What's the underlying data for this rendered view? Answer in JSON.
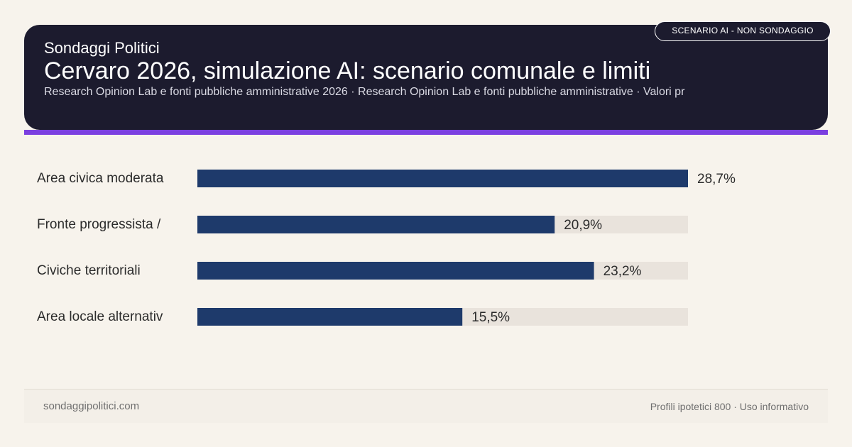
{
  "header": {
    "brand": "Sondaggi Politici",
    "title": "Cervaro 2026, simulazione AI: scenario comunale e limiti",
    "subtitle": "Research Opinion Lab e fonti pubbliche amministrative 2026 · Research Opinion Lab e fonti pubbliche amministrative · Valori pr",
    "badge": "SCENARIO AI - NON SONDAGGIO"
  },
  "colors": {
    "header_bg": "#1c1b2e",
    "accent": "#7b3fe0",
    "bar": "#1e3a6b",
    "track": "#e9e3dc",
    "page_bg": "#f7f3ec"
  },
  "chart_data": {
    "type": "bar",
    "orientation": "horizontal",
    "categories": [
      "Area civica moderata",
      "Fronte progressista /",
      "Civiche territoriali",
      "Area locale alternativ"
    ],
    "values": [
      28.7,
      20.9,
      23.2,
      15.5
    ],
    "value_labels": [
      "28,7%",
      "20,9%",
      "23,2%",
      "15,5%"
    ],
    "xlim": [
      0,
      28.7
    ],
    "grid": false,
    "legend": "none"
  },
  "footer": {
    "site": "sondaggipolitici.com",
    "note": "Profili ipotetici 800 · Uso informativo"
  }
}
